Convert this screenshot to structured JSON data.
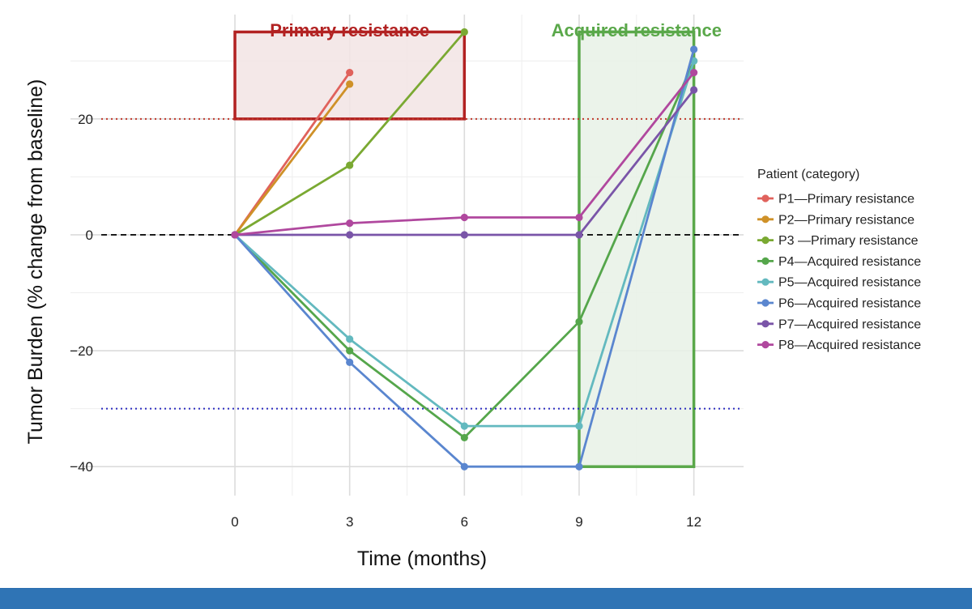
{
  "chart_data": {
    "type": "line",
    "xlabel": "Time (months)",
    "ylabel": "Tumor Burden (% change from baseline)",
    "xlim": [
      -4.3,
      13.3
    ],
    "ylim": [
      -45,
      38
    ],
    "x_ticks": [
      0,
      3,
      6,
      9,
      12
    ],
    "y_ticks": [
      -40,
      -20,
      0,
      20
    ],
    "grid": true,
    "reference_lines": [
      {
        "y": 20,
        "color": "#c0392b",
        "style": "dotted"
      },
      {
        "y": 0,
        "color": "#111111",
        "style": "dashed"
      },
      {
        "y": -30,
        "color": "#2c2cc0",
        "style": "dotted"
      }
    ],
    "regions": [
      {
        "label": "Primary resistance",
        "x": [
          0,
          6
        ],
        "y": [
          20,
          35
        ],
        "stroke": "#b22222",
        "fill": "#f2e4e4"
      },
      {
        "label": "Acquired resistance",
        "x": [
          9,
          12
        ],
        "y": [
          -40,
          35
        ],
        "stroke": "#5aa84a",
        "fill": "#e8f1e6"
      }
    ],
    "legend": {
      "title": "Patient (category)",
      "position": "right"
    },
    "series": [
      {
        "name": "P1—Primary resistance",
        "color": "#e0625c",
        "x": [
          0,
          3
        ],
        "y": [
          0,
          28
        ]
      },
      {
        "name": "P2—Primary resistance",
        "color": "#cf9128",
        "x": [
          0,
          3
        ],
        "y": [
          0,
          26
        ]
      },
      {
        "name": "P3 —Primary resistance",
        "color": "#7aa932",
        "x": [
          0,
          3,
          6
        ],
        "y": [
          0,
          12,
          35
        ]
      },
      {
        "name": "P4—Acquired resistance",
        "color": "#55a64b",
        "x": [
          0,
          3,
          6,
          9,
          12
        ],
        "y": [
          0,
          -20,
          -35,
          -15,
          30
        ]
      },
      {
        "name": "P5—Acquired resistance",
        "color": "#63b9bf",
        "x": [
          0,
          3,
          6,
          9,
          12
        ],
        "y": [
          0,
          -18,
          -33,
          -33,
          30
        ]
      },
      {
        "name": "P6—Acquired resistance",
        "color": "#5a86cf",
        "x": [
          0,
          3,
          6,
          9,
          12
        ],
        "y": [
          0,
          -22,
          -40,
          -40,
          32
        ]
      },
      {
        "name": "P7—Acquired resistance",
        "color": "#7a55a8",
        "x": [
          0,
          3,
          6,
          9,
          12
        ],
        "y": [
          0,
          0,
          0,
          0,
          25
        ]
      },
      {
        "name": "P8—Acquired resistance",
        "color": "#b0489e",
        "x": [
          0,
          3,
          6,
          9,
          12
        ],
        "y": [
          0,
          2,
          3,
          3,
          28
        ]
      }
    ]
  }
}
